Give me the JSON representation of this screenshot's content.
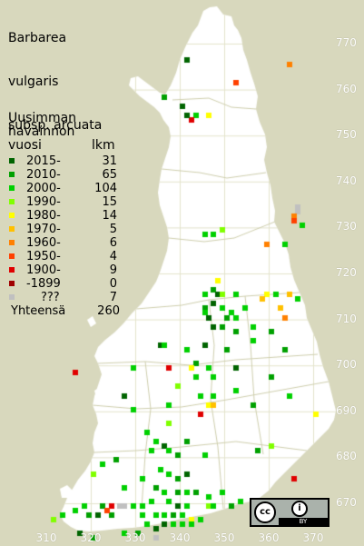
{
  "title": {
    "line1": "Barbarea",
    "line2": "vulgaris",
    "line3": "subsp. arcuata"
  },
  "legend": {
    "heading_line1": "Uusimman",
    "heading_line2": "havainnon",
    "heading_line3": "vuosi",
    "count_header": "lkm",
    "rows": [
      {
        "label": "2015-",
        "count": "31",
        "color": "#006400"
      },
      {
        "label": "2010-",
        "count": "65",
        "color": "#00a000"
      },
      {
        "label": "2000-",
        "count": "104",
        "color": "#00d000"
      },
      {
        "label": "1990-",
        "count": "15",
        "color": "#80ff00"
      },
      {
        "label": "1980-",
        "count": "14",
        "color": "#ffff00"
      },
      {
        "label": "1970-",
        "count": "5",
        "color": "#ffc000"
      },
      {
        "label": "1960-",
        "count": "6",
        "color": "#ff8000"
      },
      {
        "label": "1950-",
        "count": "4",
        "color": "#ff4000"
      },
      {
        "label": "1900-",
        "count": "9",
        "color": "#e00000"
      },
      {
        "label": "-1899",
        "count": "0",
        "color": "#a00000"
      },
      {
        "label": "???",
        "count": "7",
        "color": "#c0c0c0"
      }
    ],
    "total_label": "Yhteensä",
    "total_count": "260"
  },
  "axes": {
    "y_ticks": [
      "770",
      "760",
      "750",
      "740",
      "730",
      "720",
      "710",
      "700",
      "690",
      "680",
      "670"
    ],
    "x_ticks": [
      "310",
      "320",
      "330",
      "340",
      "350",
      "360",
      "370"
    ]
  },
  "license": {
    "cc": "cc",
    "by": "i",
    "by_label": "BY"
  },
  "colors": {
    "background": "#d8d8bd",
    "land": "#ffffff",
    "grid": "#e4e4cc",
    "border": "#cfcfae"
  },
  "observations": [
    [
      "2015",
      341,
      767
    ],
    [
      "1960",
      364,
      766
    ],
    [
      "1950",
      352,
      762
    ],
    [
      "2010",
      336,
      759
    ],
    [
      "2015",
      340,
      757
    ],
    [
      "2000",
      343,
      755
    ],
    [
      "1900",
      342,
      754
    ],
    [
      "1980",
      346,
      755
    ],
    [
      "2015",
      341,
      755
    ],
    [
      "???",
      366,
      735
    ],
    [
      "???",
      366,
      734
    ],
    [
      "1960",
      365,
      733
    ],
    [
      "1950",
      365,
      732
    ],
    [
      "2000",
      367,
      731
    ],
    [
      "1990",
      349,
      730
    ],
    [
      "2000",
      345,
      729
    ],
    [
      "2000",
      347,
      729
    ],
    [
      "2000",
      363,
      727
    ],
    [
      "1960",
      359,
      727
    ],
    [
      "1980",
      348,
      719
    ],
    [
      "2010",
      347,
      717
    ],
    [
      "2000",
      345,
      716
    ],
    [
      "2015",
      348,
      716
    ],
    [
      "1990",
      349,
      716
    ],
    [
      "2000",
      352,
      716
    ],
    [
      "1980",
      359,
      716
    ],
    [
      "1970",
      358,
      715
    ],
    [
      "2000",
      361,
      716
    ],
    [
      "1970",
      364,
      716
    ],
    [
      "2000",
      366,
      715
    ],
    [
      "2010",
      345,
      713
    ],
    [
      "2015",
      347,
      714
    ],
    [
      "2000",
      349,
      713
    ],
    [
      "2000",
      351,
      712
    ],
    [
      "2000",
      354,
      713
    ],
    [
      "2000",
      345,
      712
    ],
    [
      "2015",
      346,
      711
    ],
    [
      "2010",
      350,
      711
    ],
    [
      "2000",
      352,
      711
    ],
    [
      "1970",
      362,
      713
    ],
    [
      "1960",
      363,
      711
    ],
    [
      "2010",
      360,
      708
    ],
    [
      "2000",
      356,
      709
    ],
    [
      "2015",
      347,
      709
    ],
    [
      "2010",
      349,
      709
    ],
    [
      "2010",
      352,
      708
    ],
    [
      "2000",
      356,
      706
    ],
    [
      "2010",
      363,
      704
    ],
    [
      "2015",
      345,
      705
    ],
    [
      "2010",
      350,
      704
    ],
    [
      "2015",
      335,
      705
    ],
    [
      "2000",
      336,
      705
    ],
    [
      "2000",
      341,
      704
    ],
    [
      "2010",
      343,
      701
    ],
    [
      "1980",
      342,
      700
    ],
    [
      "2000",
      346,
      700
    ],
    [
      "1900",
      337,
      700
    ],
    [
      "2000",
      329,
      700
    ],
    [
      "1900",
      316,
      699
    ],
    [
      "2010",
      360,
      698
    ],
    [
      "2000",
      343,
      698
    ],
    [
      "2000",
      347,
      698
    ],
    [
      "2015",
      352,
      700
    ],
    [
      "1990",
      339,
      696
    ],
    [
      "2000",
      344,
      694
    ],
    [
      "2000",
      347,
      694
    ],
    [
      "2000",
      352,
      695
    ],
    [
      "2000",
      364,
      694
    ],
    [
      "1980",
      346,
      692
    ],
    [
      "1970",
      347,
      692
    ],
    [
      "2000",
      337,
      692
    ],
    [
      "2000",
      329,
      691
    ],
    [
      "2015",
      327,
      694
    ],
    [
      "2010",
      356,
      692
    ],
    [
      "1900",
      344,
      690
    ],
    [
      "1980",
      370,
      690
    ],
    [
      "1990",
      337,
      688
    ],
    [
      "2000",
      332,
      686
    ],
    [
      "2000",
      334,
      684
    ],
    [
      "2010",
      341,
      684
    ],
    [
      "2015",
      336,
      683
    ],
    [
      "2000",
      337,
      682
    ],
    [
      "2010",
      339,
      681
    ],
    [
      "2000",
      333,
      682
    ],
    [
      "1990",
      360,
      683
    ],
    [
      "2010",
      357,
      682
    ],
    [
      "2000",
      345,
      681
    ],
    [
      "2010",
      325,
      680
    ],
    [
      "2000",
      322,
      679
    ],
    [
      "1990",
      320,
      677
    ],
    [
      "2000",
      335,
      678
    ],
    [
      "2000",
      337,
      677
    ],
    [
      "2010",
      339,
      676
    ],
    [
      "2000",
      331,
      676
    ],
    [
      "2015",
      341,
      677
    ],
    [
      "1900",
      365,
      676
    ],
    [
      "2000",
      327,
      674
    ],
    [
      "2010",
      334,
      674
    ],
    [
      "2000",
      336,
      673
    ],
    [
      "2010",
      339,
      673
    ],
    [
      "2000",
      341,
      673
    ],
    [
      "2010",
      343,
      673
    ],
    [
      "2000",
      346,
      672
    ],
    [
      "2000",
      349,
      673
    ],
    [
      "2000",
      353,
      671
    ],
    [
      "2010",
      351,
      670
    ],
    [
      "2000",
      333,
      671
    ],
    [
      "2000",
      337,
      671
    ],
    [
      "2015",
      339,
      670
    ],
    [
      "2000",
      341,
      670
    ],
    [
      "1990",
      346,
      670
    ],
    [
      "2000",
      347,
      670
    ],
    [
      "2000",
      329,
      670
    ],
    [
      "2000",
      331,
      670
    ],
    [
      "1900",
      324,
      670
    ],
    [
      "???",
      326,
      670
    ],
    [
      "???",
      327,
      670
    ],
    [
      "2010",
      322,
      670
    ],
    [
      "2015",
      323,
      669
    ],
    [
      "2000",
      318,
      670
    ],
    [
      "2000",
      316,
      669
    ],
    [
      "2010",
      319,
      668
    ],
    [
      "2000",
      331,
      668
    ],
    [
      "2000",
      334,
      668
    ],
    [
      "2000",
      336,
      668
    ],
    [
      "2010",
      338,
      668
    ],
    [
      "2000",
      340,
      668
    ],
    [
      "1980",
      342,
      667
    ],
    [
      "2000",
      344,
      667
    ],
    [
      "2000",
      313,
      668
    ],
    [
      "1990",
      311,
      667
    ],
    [
      "2015",
      321,
      668
    ],
    [
      "2010",
      324,
      668
    ],
    [
      "1950",
      323,
      669
    ],
    [
      "2000",
      332,
      666
    ],
    [
      "2015",
      334,
      665
    ],
    [
      "2015",
      336,
      666
    ],
    [
      "2000",
      338,
      666
    ],
    [
      "2000",
      340,
      666
    ],
    [
      "2000",
      342,
      666
    ],
    [
      "???",
      334,
      663
    ],
    [
      "2010",
      330,
      664
    ],
    [
      "2000",
      327,
      664
    ],
    [
      "2015",
      317,
      664
    ],
    [
      "2010",
      320,
      663
    ]
  ]
}
